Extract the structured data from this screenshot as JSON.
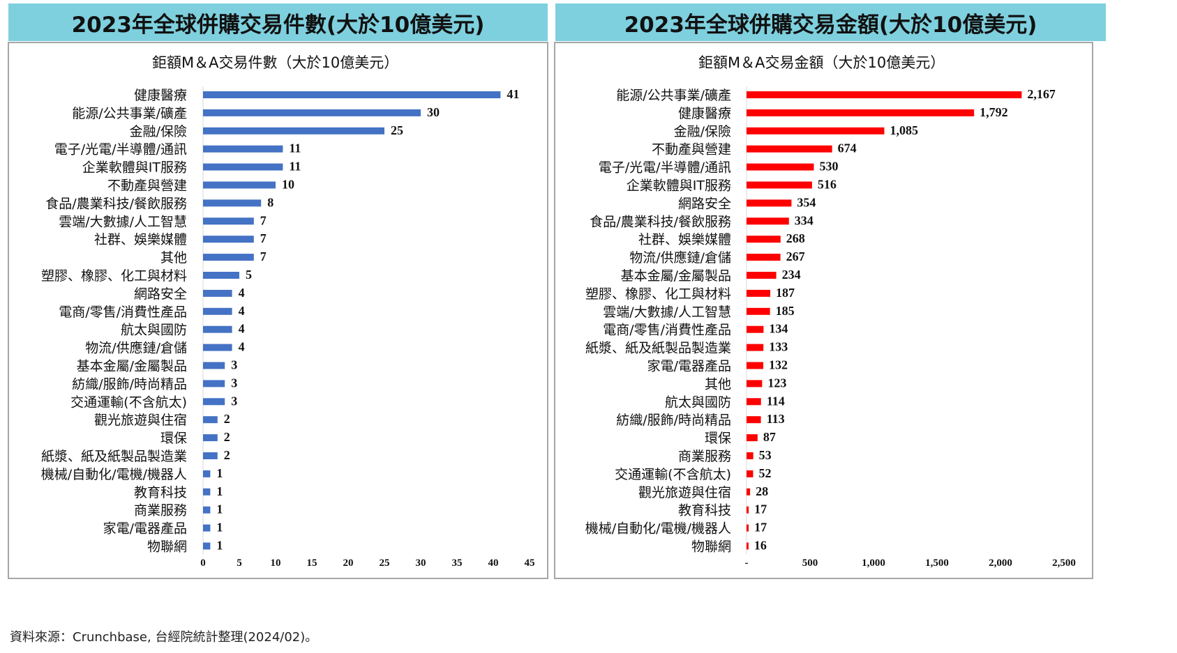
{
  "source_note": "資料來源：Crunchbase, 台經院統計整理(2024/02)。",
  "chart_data": [
    {
      "type": "bar",
      "orientation": "horizontal",
      "header": "2023年全球併購交易件數(大於10億美元)",
      "title": "鉅額M＆A交易件數（大於10億美元）",
      "color": "#4472C4",
      "xlim": [
        0,
        45
      ],
      "xticks": [
        "0",
        "5",
        "10",
        "15",
        "20",
        "25",
        "30",
        "35",
        "40",
        "45"
      ],
      "categories": [
        "健康醫療",
        "能源/公共事業/礦產",
        "金融/保險",
        "電子/光電/半導體/通訊",
        "企業軟體與IT服務",
        "不動產與營建",
        "食品/農業科技/餐飲服務",
        "雲端/大數據/人工智慧",
        "社群、娛樂媒體",
        "其他",
        "塑膠、橡膠、化工與材料",
        "網路安全",
        "電商/零售/消費性產品",
        "航太與國防",
        "物流/供應鏈/倉儲",
        "基本金屬/金屬製品",
        "紡織/服飾/時尚精品",
        "交通運輸(不含航太)",
        "觀光旅遊與住宿",
        "環保",
        "紙漿、紙及紙製品製造業",
        "機械/自動化/電機/機器人",
        "教育科技",
        "商業服務",
        "家電/電器產品",
        "物聯網"
      ],
      "values": [
        41,
        30,
        25,
        11,
        11,
        10,
        8,
        7,
        7,
        7,
        5,
        4,
        4,
        4,
        4,
        3,
        3,
        3,
        2,
        2,
        2,
        1,
        1,
        1,
        1,
        1
      ],
      "value_labels": [
        "41",
        "30",
        "25",
        "11",
        "11",
        "10",
        "8",
        "7",
        "7",
        "7",
        "5",
        "4",
        "4",
        "4",
        "4",
        "3",
        "3",
        "3",
        "2",
        "2",
        "2",
        "1",
        "1",
        "1",
        "1",
        "1"
      ]
    },
    {
      "type": "bar",
      "orientation": "horizontal",
      "header": "2023年全球併購交易金額(大於10億美元)",
      "title": "鉅額M＆A交易金額（大於10億美元）",
      "color": "#FF0000",
      "xlim": [
        0,
        2500
      ],
      "xticks": [
        "-",
        "500",
        "1,000",
        "1,500",
        "2,000",
        "2,500"
      ],
      "categories": [
        "能源/公共事業/礦產",
        "健康醫療",
        "金融/保險",
        "不動產與營建",
        "電子/光電/半導體/通訊",
        "企業軟體與IT服務",
        "網路安全",
        "食品/農業科技/餐飲服務",
        "社群、娛樂媒體",
        "物流/供應鏈/倉儲",
        "基本金屬/金屬製品",
        "塑膠、橡膠、化工與材料",
        "雲端/大數據/人工智慧",
        "電商/零售/消費性產品",
        "紙漿、紙及紙製品製造業",
        "家電/電器產品",
        "其他",
        "航太與國防",
        "紡織/服飾/時尚精品",
        "環保",
        "商業服務",
        "交通運輸(不含航太)",
        "觀光旅遊與住宿",
        "教育科技",
        "機械/自動化/電機/機器人",
        "物聯網"
      ],
      "values": [
        2167,
        1792,
        1085,
        674,
        530,
        516,
        354,
        334,
        268,
        267,
        234,
        187,
        185,
        134,
        133,
        132,
        123,
        114,
        113,
        87,
        53,
        52,
        28,
        17,
        17,
        16
      ],
      "value_labels": [
        "2,167",
        "1,792",
        "1,085",
        "674",
        "530",
        "516",
        "354",
        "334",
        "268",
        "267",
        "234",
        "187",
        "185",
        "134",
        "133",
        "132",
        "123",
        "114",
        "113",
        "87",
        "53",
        "52",
        "28",
        "17",
        "17",
        "16"
      ]
    }
  ]
}
